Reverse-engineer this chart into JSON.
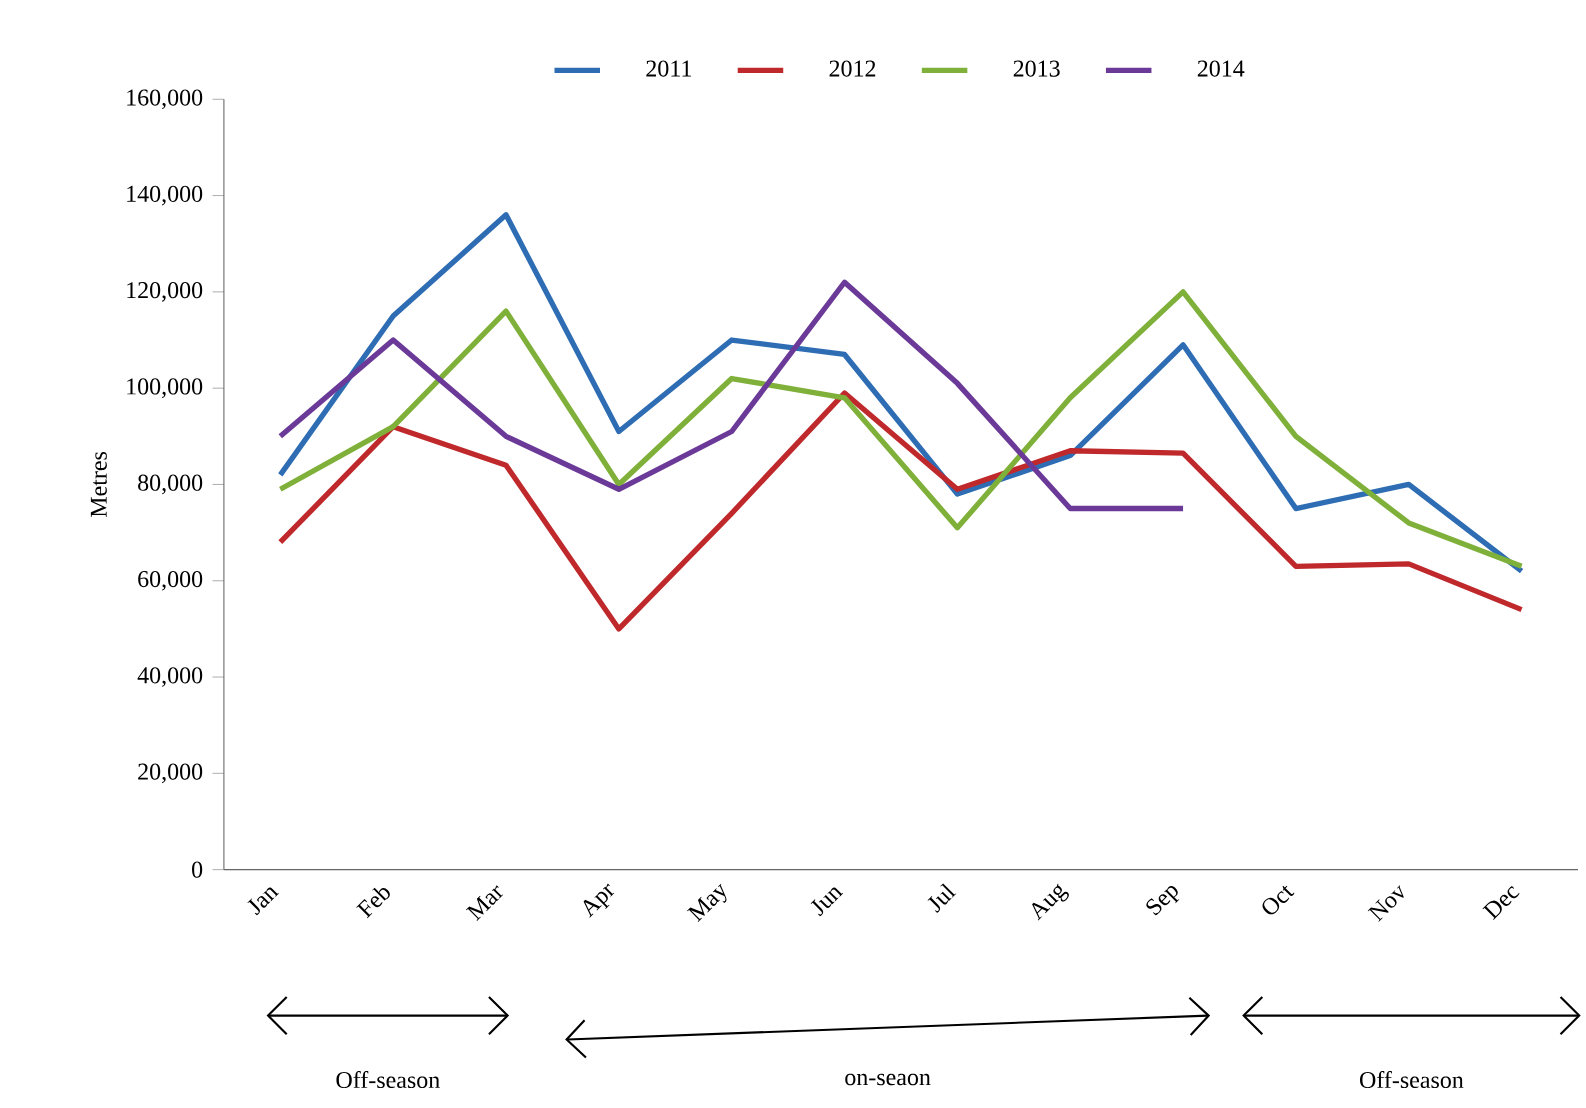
{
  "chart_data": {
    "type": "line",
    "ylabel": "Metres",
    "categories": [
      "Jan",
      "Feb",
      "Mar",
      "Apr",
      "May",
      "Jun",
      "Jul",
      "Aug",
      "Sep",
      "Oct",
      "Nov",
      "Dec"
    ],
    "series": [
      {
        "name": "2011",
        "color": "#2e6db4",
        "values": [
          82000,
          115000,
          136000,
          91000,
          110000,
          107000,
          78000,
          86000,
          109000,
          75000,
          80000,
          62000
        ]
      },
      {
        "name": "2012",
        "color": "#c0292b",
        "values": [
          68000,
          92000,
          84000,
          50000,
          74000,
          99000,
          79000,
          87000,
          86500,
          63000,
          63500,
          54000
        ]
      },
      {
        "name": "2013",
        "color": "#7fb03a",
        "values": [
          79000,
          92000,
          116000,
          80000,
          102000,
          98000,
          71000,
          98000,
          120000,
          90000,
          72000,
          63000
        ]
      },
      {
        "name": "2014",
        "color": "#6b3a98",
        "values": [
          90000,
          110000,
          90000,
          79000,
          91000,
          122000,
          101000,
          75000,
          75000,
          null,
          null,
          null
        ]
      }
    ],
    "ylim": [
      0,
      160000
    ],
    "yticks": [
      {
        "value": 0,
        "label": "0"
      },
      {
        "value": 20000,
        "label": "20,000"
      },
      {
        "value": 40000,
        "label": "40,000"
      },
      {
        "value": 60000,
        "label": "60,000"
      },
      {
        "value": 80000,
        "label": "80,000"
      },
      {
        "value": 100000,
        "label": "100,000"
      },
      {
        "value": 120000,
        "label": "120,000"
      },
      {
        "value": 140000,
        "label": "140,000"
      },
      {
        "value": 160000,
        "label": "160,000"
      }
    ],
    "legend": "top",
    "grid": false,
    "marker": "none",
    "line_style": "solid",
    "annotations": [
      "Off-season",
      "on-seaon",
      "Off-season"
    ]
  }
}
